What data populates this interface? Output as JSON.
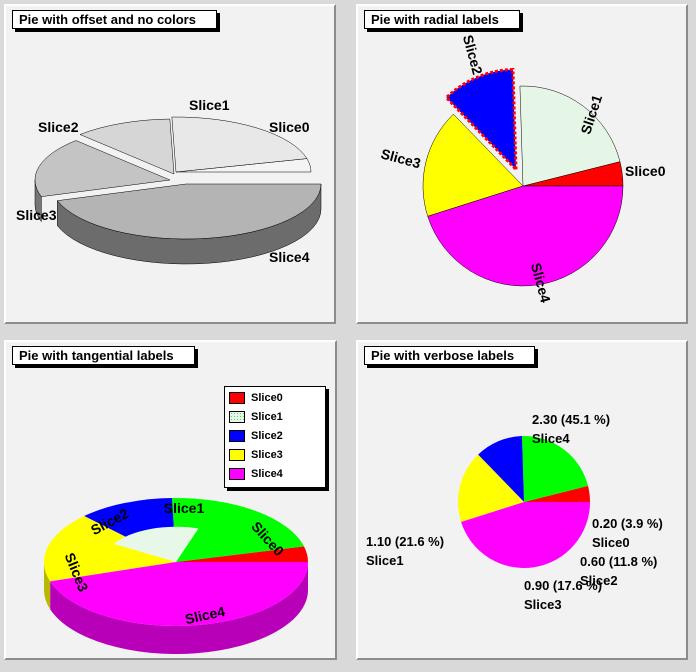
{
  "pads": [
    {
      "title": "Pie with offset and no colors"
    },
    {
      "title": "Pie with radial labels"
    },
    {
      "title": "Pie with tangential labels"
    },
    {
      "title": "Pie with verbose labels"
    }
  ],
  "legend": {
    "entries": [
      "Slice0",
      "Slice1",
      "Slice2",
      "Slice3",
      "Slice4"
    ]
  },
  "colors": {
    "slice0": "#ff0000",
    "slice1": "#00ff00",
    "slice2": "#0000ff",
    "slice3": "#ffff00",
    "slice4": "#ff00ff"
  },
  "chart_data": [
    {
      "type": "pie",
      "title": "Pie with offset and no colors",
      "categories": [
        "Slice0",
        "Slice1",
        "Slice2",
        "Slice3",
        "Slice4"
      ],
      "values": [
        0.2,
        1.1,
        0.6,
        0.9,
        2.3
      ],
      "style": "3d, grayscale, offset slices"
    },
    {
      "type": "pie",
      "title": "Pie with radial labels",
      "categories": [
        "Slice0",
        "Slice1",
        "Slice2",
        "Slice3",
        "Slice4"
      ],
      "values": [
        0.2,
        1.1,
        0.6,
        0.9,
        2.3
      ],
      "label_style": "radial",
      "exploded": "Slice2"
    },
    {
      "type": "pie",
      "title": "Pie with tangential labels",
      "categories": [
        "Slice0",
        "Slice1",
        "Slice2",
        "Slice3",
        "Slice4"
      ],
      "values": [
        0.2,
        1.1,
        0.6,
        0.9,
        2.3
      ],
      "label_style": "tangential",
      "legend": "top-right"
    },
    {
      "type": "pie",
      "title": "Pie with verbose labels",
      "categories": [
        "Slice0",
        "Slice1",
        "Slice2",
        "Slice3",
        "Slice4"
      ],
      "values": [
        0.2,
        1.1,
        0.6,
        0.9,
        2.3
      ],
      "value_labels": [
        "0.20 (3.9 %)",
        "1.10 (21.6 %)",
        "0.60 (11.8 %)",
        "0.90 (17.6 %)",
        "2.30 (45.1 %)"
      ]
    }
  ]
}
